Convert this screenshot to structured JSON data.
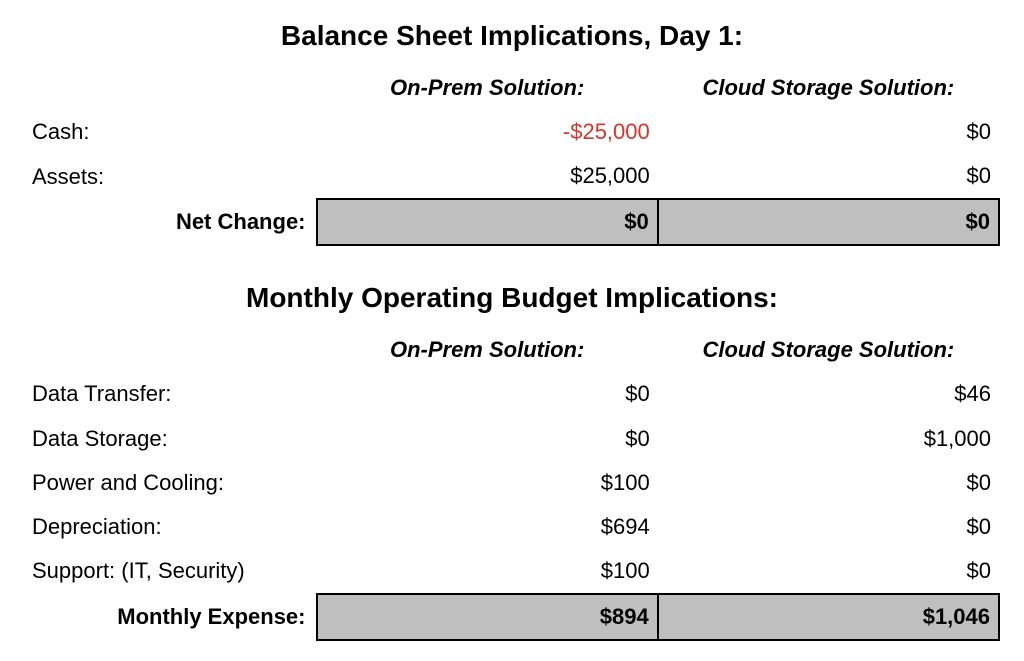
{
  "balance": {
    "title": "Balance Sheet Implications, Day 1:",
    "col1": "On-Prem Solution:",
    "col2": "Cloud Storage Solution:",
    "rows": [
      {
        "label": "Cash:",
        "v1": "-$25,000",
        "v1_neg": true,
        "v2": "$0"
      },
      {
        "label": "Assets:",
        "v1": "$25,000",
        "v1_neg": false,
        "v2": "$0"
      }
    ],
    "total": {
      "label": "Net Change:",
      "v1": "$0",
      "v2": "$0"
    }
  },
  "monthly": {
    "title": "Monthly Operating Budget Implications:",
    "col1": "On-Prem Solution:",
    "col2": "Cloud Storage Solution:",
    "rows": [
      {
        "label": "Data Transfer:",
        "v1": "$0",
        "v2": "$46"
      },
      {
        "label": "Data Storage:",
        "v1": "$0",
        "v2": "$1,000"
      },
      {
        "label": "Power and Cooling:",
        "v1": "$100",
        "v2": "$0"
      },
      {
        "label": "Depreciation:",
        "v1": "$694",
        "v2": "$0"
      },
      {
        "label": "Support: (IT, Security)",
        "v1": "$100",
        "v2": "$0"
      }
    ],
    "total": {
      "label": "Monthly Expense:",
      "v1": "$894",
      "v2": "$1,046"
    }
  },
  "style": {
    "neg_color": "#d9342b",
    "highlight_bg": "#bfbfbf",
    "border_color": "#000000",
    "background": "#ffffff",
    "text_color": "#000000",
    "title_fontsize": 28,
    "body_fontsize": 22
  }
}
